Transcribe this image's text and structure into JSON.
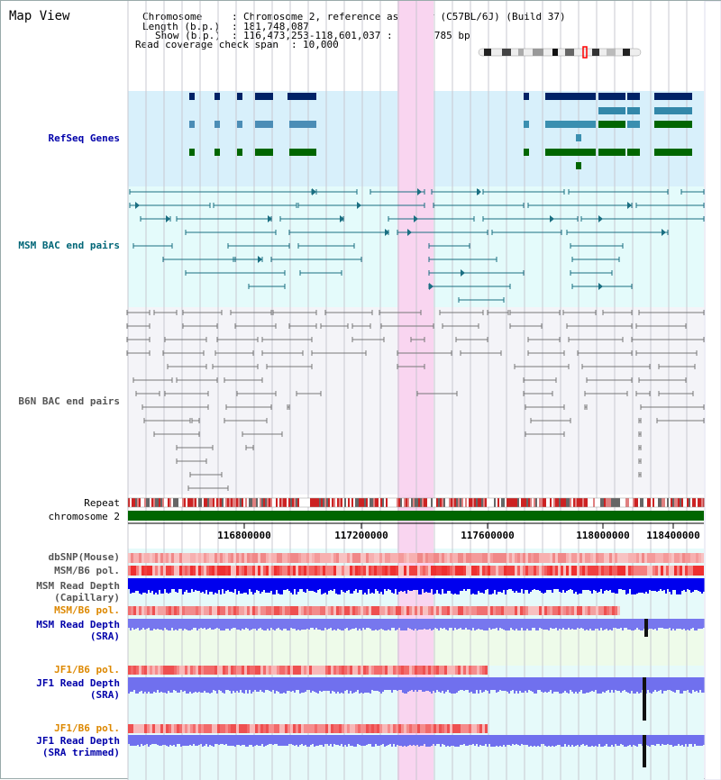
{
  "title": "Map View",
  "info": {
    "chromosome_key": "Chromosome",
    "chromosome_val": "Chromosome 2, reference assembly (C57BL/6J) (Build 37)",
    "length_key": "Length (b.p.)",
    "length_val": "181,748,087",
    "show_key": "Show (b.p.)",
    "show_val": "116,473,253-118,601,037 : 2,127,785 bp",
    "coverage_key": "Read coverage check span",
    "coverage_val": "10,000"
  },
  "tracks": {
    "refseq": "RefSeq Genes",
    "msm_bac": "MSM BAC end pairs",
    "b6n_bac": "B6N BAC end pairs",
    "repeat": "Repeat",
    "chromosome": "chromosome 2",
    "dbsnp": "dbSNP(Mouse)",
    "msm_pol_1": "MSM/B6 pol.",
    "msm_depth_cap": "MSM Read Depth\n(Capillary)",
    "msm_pol_2": "MSM/B6 pol.",
    "msm_depth_sra": "MSM Read Depth\n(SRA)",
    "jf1_pol_1": "JF1/B6 pol.",
    "jf1_depth_sra": "JF1 Read Depth\n(SRA)",
    "jf1_pol_2": "JF1/B6 pol.",
    "jf1_depth_trim": "JF1 Read Depth\n(SRA trimmed)"
  },
  "axis_ticks": [
    "116800000",
    "117200000",
    "117600000",
    "118000000",
    "118400000"
  ],
  "colors": {
    "label_blue": "#0000aa",
    "label_teal": "#006677",
    "label_gray": "#555555",
    "label_orange": "#dd8800",
    "highlight": "#f9d5f0",
    "refseq_bg": "#d8f0fb",
    "msm_bg": "#e4fbfb",
    "b6n_bg": "#f4f4f8",
    "chrom_green": "#006600",
    "depth_blue": "#0000ee"
  }
}
